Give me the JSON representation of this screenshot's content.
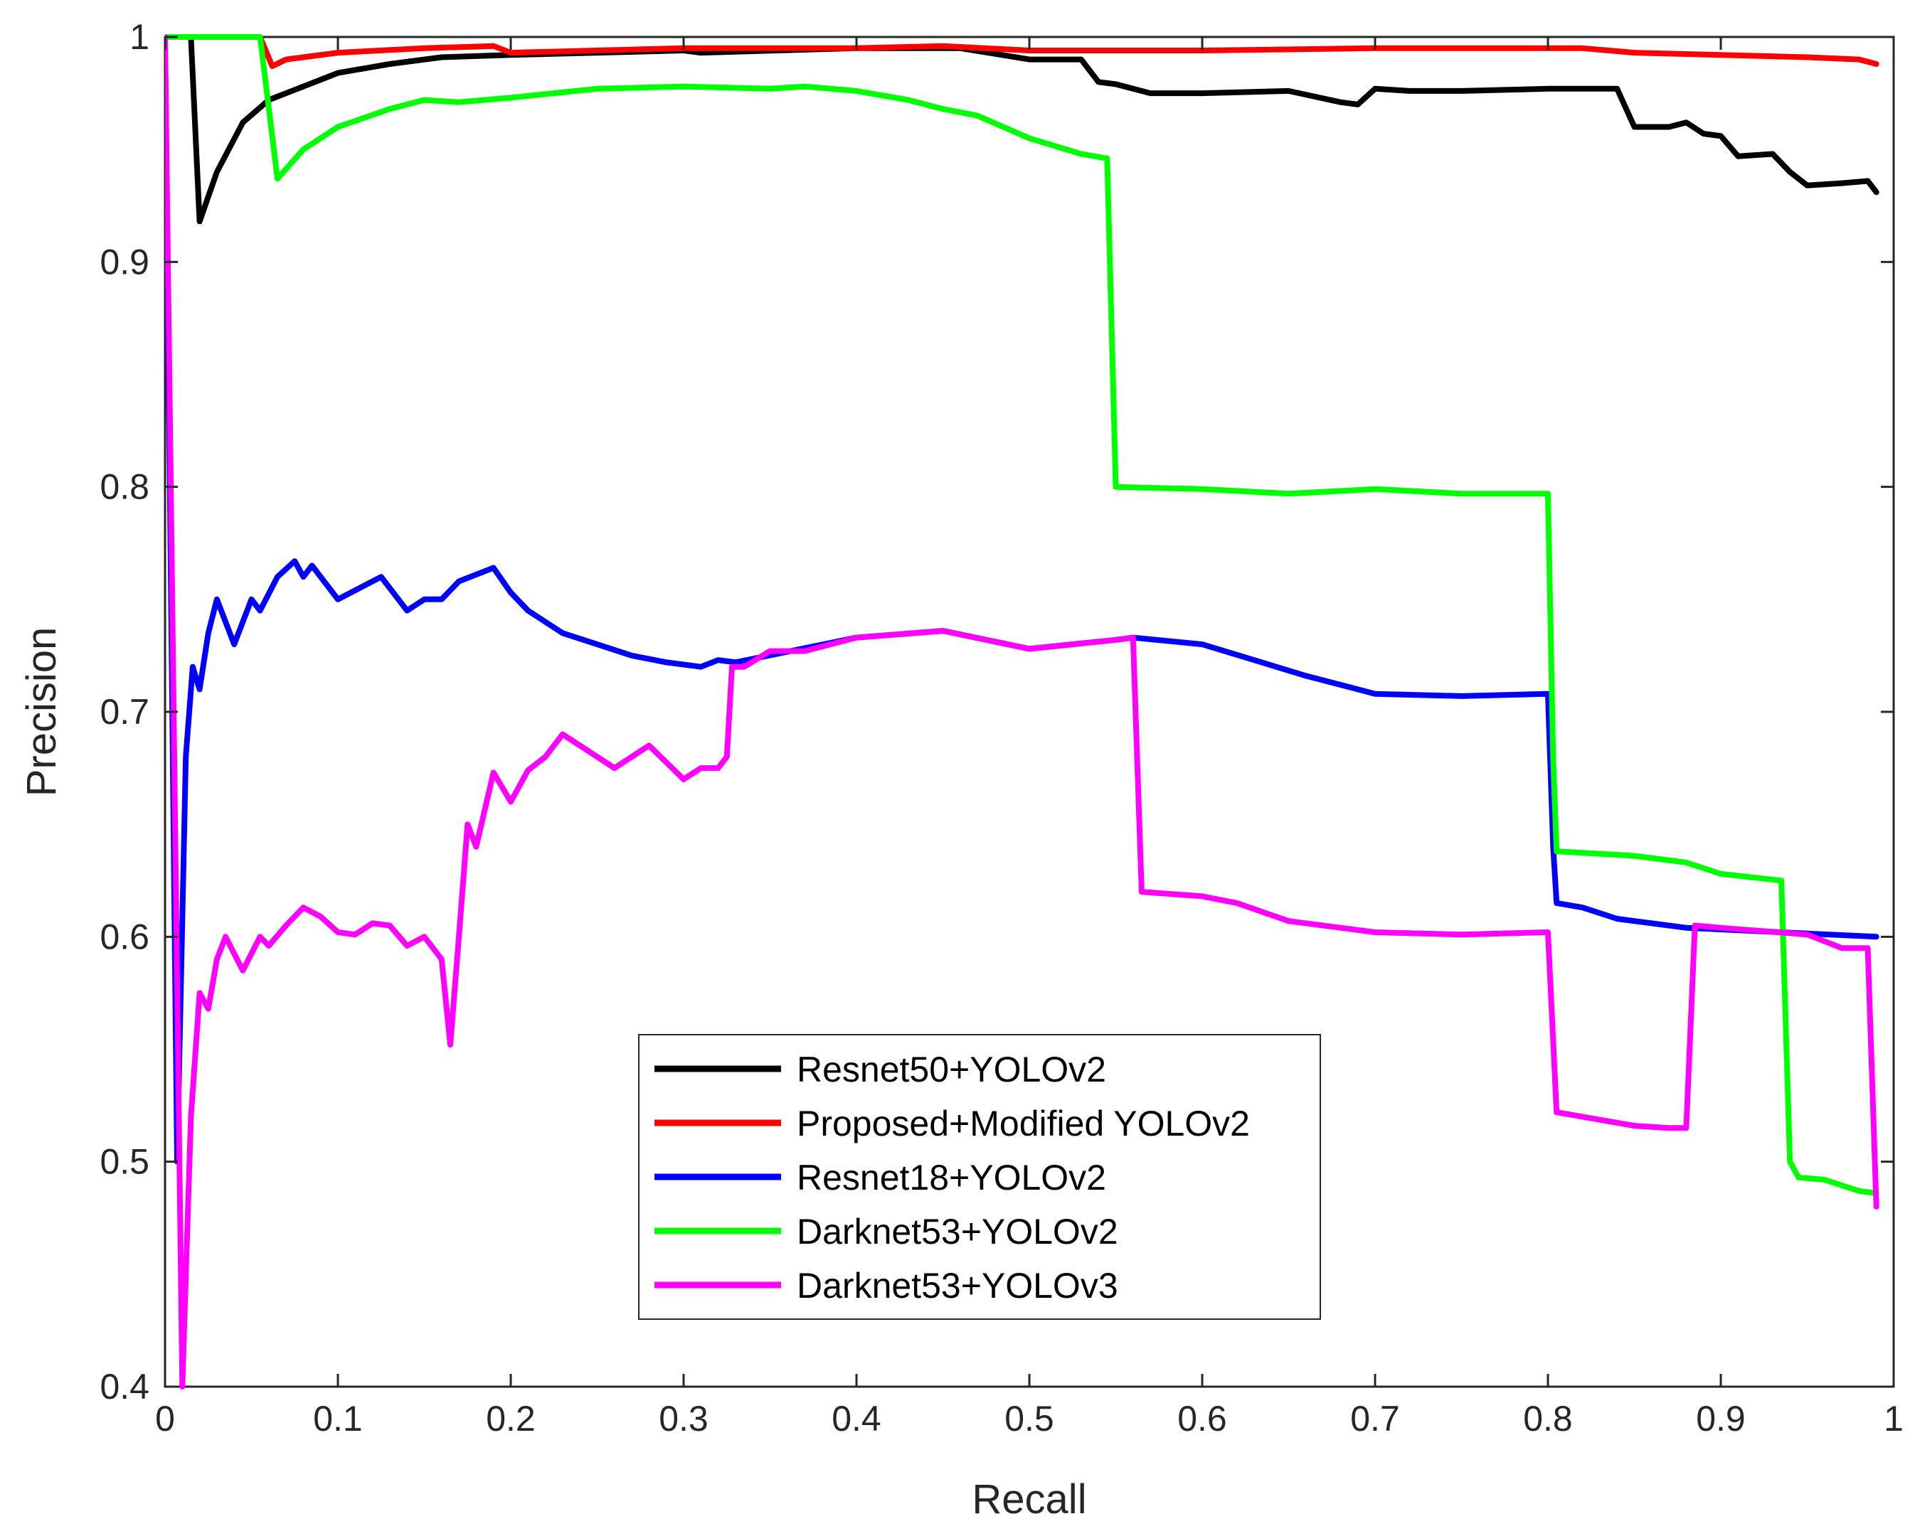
{
  "chart_data": {
    "type": "line",
    "title": "",
    "xlabel": "Recall",
    "ylabel": "Precision",
    "xlim": [
      0,
      1
    ],
    "ylim": [
      0.4,
      1
    ],
    "x_ticks": [
      "0",
      "0.1",
      "0.2",
      "0.3",
      "0.4",
      "0.5",
      "0.6",
      "0.7",
      "0.8",
      "0.9",
      "1"
    ],
    "y_ticks": [
      "0.4",
      "0.5",
      "0.6",
      "0.7",
      "0.8",
      "0.9",
      "1"
    ],
    "grid": false,
    "legend_position": "bottom-center",
    "series": [
      {
        "name": "Resnet50+YOLOv2",
        "color": "#000000",
        "points": [
          [
            0,
            1.0
          ],
          [
            0.015,
            1.0
          ],
          [
            0.02,
            0.918
          ],
          [
            0.03,
            0.94
          ],
          [
            0.045,
            0.962
          ],
          [
            0.06,
            0.972
          ],
          [
            0.08,
            0.978
          ],
          [
            0.1,
            0.984
          ],
          [
            0.13,
            0.988
          ],
          [
            0.16,
            0.991
          ],
          [
            0.2,
            0.992
          ],
          [
            0.3,
            0.994
          ],
          [
            0.31,
            0.993
          ],
          [
            0.4,
            0.995
          ],
          [
            0.46,
            0.995
          ],
          [
            0.5,
            0.99
          ],
          [
            0.53,
            0.99
          ],
          [
            0.54,
            0.98
          ],
          [
            0.55,
            0.979
          ],
          [
            0.57,
            0.975
          ],
          [
            0.6,
            0.975
          ],
          [
            0.65,
            0.976
          ],
          [
            0.68,
            0.971
          ],
          [
            0.69,
            0.97
          ],
          [
            0.7,
            0.977
          ],
          [
            0.72,
            0.976
          ],
          [
            0.75,
            0.976
          ],
          [
            0.8,
            0.977
          ],
          [
            0.84,
            0.977
          ],
          [
            0.85,
            0.96
          ],
          [
            0.87,
            0.96
          ],
          [
            0.88,
            0.962
          ],
          [
            0.89,
            0.957
          ],
          [
            0.9,
            0.956
          ],
          [
            0.91,
            0.947
          ],
          [
            0.93,
            0.948
          ],
          [
            0.94,
            0.94
          ],
          [
            0.95,
            0.934
          ],
          [
            0.97,
            0.935
          ],
          [
            0.985,
            0.936
          ],
          [
            0.99,
            0.931
          ]
        ]
      },
      {
        "name": "Proposed+Modified YOLOv2",
        "color": "#ff0000",
        "points": [
          [
            0,
            1.0
          ],
          [
            0.055,
            1.0
          ],
          [
            0.062,
            0.987
          ],
          [
            0.07,
            0.99
          ],
          [
            0.1,
            0.993
          ],
          [
            0.15,
            0.995
          ],
          [
            0.19,
            0.996
          ],
          [
            0.2,
            0.993
          ],
          [
            0.3,
            0.995
          ],
          [
            0.4,
            0.995
          ],
          [
            0.45,
            0.996
          ],
          [
            0.5,
            0.994
          ],
          [
            0.6,
            0.994
          ],
          [
            0.7,
            0.995
          ],
          [
            0.8,
            0.995
          ],
          [
            0.82,
            0.995
          ],
          [
            0.85,
            0.993
          ],
          [
            0.9,
            0.992
          ],
          [
            0.95,
            0.991
          ],
          [
            0.98,
            0.99
          ],
          [
            0.99,
            0.988
          ]
        ]
      },
      {
        "name": "Resnet18+YOLOv2",
        "color": "#0000ff",
        "points": [
          [
            0,
            1.0
          ],
          [
            0.007,
            0.5
          ],
          [
            0.012,
            0.68
          ],
          [
            0.016,
            0.72
          ],
          [
            0.02,
            0.71
          ],
          [
            0.025,
            0.735
          ],
          [
            0.03,
            0.75
          ],
          [
            0.04,
            0.73
          ],
          [
            0.05,
            0.75
          ],
          [
            0.055,
            0.745
          ],
          [
            0.065,
            0.76
          ],
          [
            0.075,
            0.767
          ],
          [
            0.08,
            0.76
          ],
          [
            0.085,
            0.765
          ],
          [
            0.1,
            0.75
          ],
          [
            0.11,
            0.754
          ],
          [
            0.125,
            0.76
          ],
          [
            0.14,
            0.745
          ],
          [
            0.15,
            0.75
          ],
          [
            0.16,
            0.75
          ],
          [
            0.17,
            0.758
          ],
          [
            0.19,
            0.764
          ],
          [
            0.2,
            0.753
          ],
          [
            0.21,
            0.745
          ],
          [
            0.23,
            0.735
          ],
          [
            0.25,
            0.73
          ],
          [
            0.27,
            0.725
          ],
          [
            0.29,
            0.722
          ],
          [
            0.31,
            0.72
          ],
          [
            0.32,
            0.723
          ],
          [
            0.33,
            0.722
          ],
          [
            0.4,
            0.733
          ],
          [
            0.45,
            0.736
          ],
          [
            0.5,
            0.728
          ],
          [
            0.55,
            0.732
          ],
          [
            0.56,
            0.733
          ],
          [
            0.6,
            0.73
          ],
          [
            0.63,
            0.723
          ],
          [
            0.66,
            0.716
          ],
          [
            0.68,
            0.712
          ],
          [
            0.7,
            0.708
          ],
          [
            0.75,
            0.707
          ],
          [
            0.8,
            0.708
          ],
          [
            0.803,
            0.64
          ],
          [
            0.805,
            0.615
          ],
          [
            0.82,
            0.613
          ],
          [
            0.84,
            0.608
          ],
          [
            0.88,
            0.604
          ],
          [
            0.99,
            0.6
          ]
        ]
      },
      {
        "name": "Darknet53+YOLOv2",
        "color": "#00ff00",
        "points": [
          [
            0,
            1.0
          ],
          [
            0.055,
            1.0
          ],
          [
            0.065,
            0.937
          ],
          [
            0.08,
            0.95
          ],
          [
            0.1,
            0.96
          ],
          [
            0.13,
            0.968
          ],
          [
            0.15,
            0.972
          ],
          [
            0.17,
            0.971
          ],
          [
            0.2,
            0.973
          ],
          [
            0.25,
            0.977
          ],
          [
            0.3,
            0.978
          ],
          [
            0.35,
            0.977
          ],
          [
            0.37,
            0.978
          ],
          [
            0.4,
            0.976
          ],
          [
            0.43,
            0.972
          ],
          [
            0.45,
            0.968
          ],
          [
            0.47,
            0.965
          ],
          [
            0.5,
            0.955
          ],
          [
            0.53,
            0.948
          ],
          [
            0.545,
            0.946
          ],
          [
            0.55,
            0.8
          ],
          [
            0.6,
            0.799
          ],
          [
            0.65,
            0.797
          ],
          [
            0.7,
            0.799
          ],
          [
            0.75,
            0.797
          ],
          [
            0.8,
            0.797
          ],
          [
            0.803,
            0.68
          ],
          [
            0.805,
            0.638
          ],
          [
            0.85,
            0.636
          ],
          [
            0.88,
            0.633
          ],
          [
            0.9,
            0.628
          ],
          [
            0.935,
            0.625
          ],
          [
            0.94,
            0.5
          ],
          [
            0.945,
            0.493
          ],
          [
            0.96,
            0.492
          ],
          [
            0.98,
            0.487
          ],
          [
            0.99,
            0.486
          ]
        ]
      },
      {
        "name": "Darknet53+YOLOv3",
        "color": "#ff00ff",
        "points": [
          [
            0,
            1.0
          ],
          [
            0.01,
            0.4
          ],
          [
            0.015,
            0.52
          ],
          [
            0.02,
            0.575
          ],
          [
            0.025,
            0.568
          ],
          [
            0.03,
            0.59
          ],
          [
            0.035,
            0.6
          ],
          [
            0.045,
            0.585
          ],
          [
            0.055,
            0.6
          ],
          [
            0.06,
            0.596
          ],
          [
            0.07,
            0.605
          ],
          [
            0.08,
            0.613
          ],
          [
            0.09,
            0.609
          ],
          [
            0.1,
            0.602
          ],
          [
            0.11,
            0.601
          ],
          [
            0.12,
            0.606
          ],
          [
            0.13,
            0.605
          ],
          [
            0.14,
            0.596
          ],
          [
            0.15,
            0.6
          ],
          [
            0.16,
            0.59
          ],
          [
            0.165,
            0.552
          ],
          [
            0.17,
            0.6
          ],
          [
            0.175,
            0.65
          ],
          [
            0.18,
            0.64
          ],
          [
            0.19,
            0.673
          ],
          [
            0.2,
            0.66
          ],
          [
            0.21,
            0.674
          ],
          [
            0.22,
            0.68
          ],
          [
            0.23,
            0.69
          ],
          [
            0.24,
            0.685
          ],
          [
            0.26,
            0.675
          ],
          [
            0.28,
            0.685
          ],
          [
            0.3,
            0.67
          ],
          [
            0.31,
            0.675
          ],
          [
            0.32,
            0.675
          ],
          [
            0.325,
            0.68
          ],
          [
            0.328,
            0.72
          ],
          [
            0.335,
            0.72
          ],
          [
            0.35,
            0.727
          ],
          [
            0.37,
            0.727
          ],
          [
            0.4,
            0.733
          ],
          [
            0.45,
            0.736
          ],
          [
            0.5,
            0.728
          ],
          [
            0.55,
            0.732
          ],
          [
            0.56,
            0.733
          ],
          [
            0.565,
            0.62
          ],
          [
            0.6,
            0.618
          ],
          [
            0.62,
            0.615
          ],
          [
            0.65,
            0.607
          ],
          [
            0.7,
            0.602
          ],
          [
            0.75,
            0.601
          ],
          [
            0.8,
            0.602
          ],
          [
            0.805,
            0.522
          ],
          [
            0.82,
            0.52
          ],
          [
            0.85,
            0.516
          ],
          [
            0.87,
            0.515
          ],
          [
            0.88,
            0.515
          ],
          [
            0.885,
            0.605
          ],
          [
            0.9,
            0.604
          ],
          [
            0.95,
            0.601
          ],
          [
            0.97,
            0.595
          ],
          [
            0.985,
            0.595
          ],
          [
            0.99,
            0.48
          ]
        ]
      }
    ]
  }
}
